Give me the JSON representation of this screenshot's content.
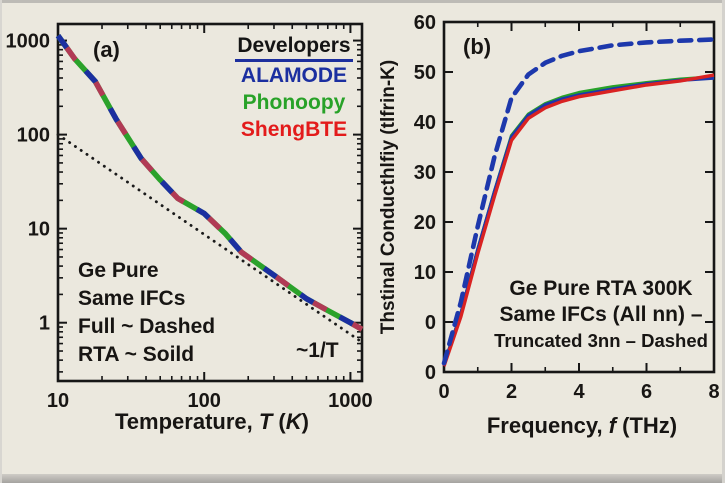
{
  "panel_a": {
    "tag": "(a)",
    "legend": {
      "title": "Developers",
      "underline_color": "#1d2f9e",
      "entries": [
        {
          "label": "ALAMODE",
          "color": "#1b2fa0"
        },
        {
          "label": "Phonoopy",
          "color": "#28a228"
        },
        {
          "label": "ShengBTE",
          "color": "#e31b1b"
        }
      ]
    },
    "note_lines": [
      "Ge Pure",
      "Same IFCs",
      "Full ~ Dashed",
      "RTA ~ Soild"
    ],
    "slope_label": "~1/T",
    "xlabel_parts": [
      {
        "t": "Temperature, "
      },
      {
        "t": "T",
        "i": true
      },
      {
        "t": " ("
      },
      {
        "t": "K",
        "i": true
      },
      {
        "t": ")"
      }
    ]
  },
  "panel_b": {
    "tag": "(b)",
    "note_lines": [
      "Ge Pure RTA 300K",
      "Same IFCs (All nn) –",
      "Truncated 3nn – Dashed"
    ],
    "ylabel": "Thstinal Conducthlfiy (tlfrin-K)",
    "xlabel_parts": [
      {
        "t": "Frequency, "
      },
      {
        "t": "f",
        "i": true
      },
      {
        "t": " (THz)"
      }
    ]
  },
  "chart_data": [
    {
      "id": "a",
      "type": "line",
      "panel": "(a)",
      "x_scale": "log",
      "y_scale": "log",
      "xlabel": "Temperature, T (K)",
      "ylabel": "",
      "xlim": [
        10,
        1200
      ],
      "ylim": [
        0.24,
        1500
      ],
      "x_ticks": [
        10,
        100,
        1000
      ],
      "y_ticks": [
        1,
        10,
        100,
        1000
      ],
      "grid": false,
      "annotations": [
        "Ge Pure",
        "Same IFCs",
        "Full ~ Dashed",
        "RTA ~ Soild",
        "~1/T"
      ],
      "series": [
        {
          "name": "ALAMODE / Phonoopy / ShengBTE (overlapping RTA solid + full dashed)",
          "style": "tricolor-dashed",
          "colors": [
            "#2ba22b",
            "#1b2fa0",
            "#b13a55"
          ],
          "width": 5.5,
          "x": [
            10,
            13,
            18,
            25,
            37,
            50,
            66,
            100,
            140,
            180,
            300,
            500,
            700,
            1000,
            1200
          ],
          "y": [
            1130,
            640,
            367,
            146,
            56,
            33,
            21,
            14.5,
            8.8,
            5.6,
            3.2,
            1.8,
            1.35,
            1.0,
            0.85
          ]
        },
        {
          "name": "~1/T reference",
          "style": "dotted",
          "colors": [
            "#1a1a1a"
          ],
          "width": 2.8,
          "x": [
            10,
            1200
          ],
          "y": [
            100,
            0.62
          ]
        }
      ]
    },
    {
      "id": "b",
      "type": "line",
      "panel": "(b)",
      "x_scale": "linear",
      "y_scale": "linear",
      "xlabel": "Frequency, f (THz)",
      "ylabel": "Thstinal Conducthlfiy (tlfrin-K)",
      "xlim": [
        0,
        8
      ],
      "ylim": [
        0,
        60
      ],
      "x_ticks": [
        0,
        2,
        4,
        6,
        8
      ],
      "x_minor_ticks": [
        1,
        3,
        5,
        7
      ],
      "y_tick_labels": [
        "60",
        "50",
        "40",
        "30",
        "20",
        "10",
        "0",
        "0"
      ],
      "y_ticks_layout": "8 evenly spaced rows as printed (duplicate 0 in source)",
      "grid": false,
      "series": [
        {
          "name": "Phonoopy (All nn, solid)",
          "style": "solid",
          "colors": [
            "#28a228"
          ],
          "width": 3.4,
          "x": [
            0,
            0.5,
            1,
            1.5,
            2,
            2.5,
            3,
            3.5,
            4,
            4.5,
            5,
            6,
            7,
            8
          ],
          "y": [
            1.2,
            10,
            21,
            31,
            40.5,
            44.2,
            46.0,
            47.1,
            47.9,
            48.4,
            48.9,
            49.6,
            50.2,
            50.6
          ]
        },
        {
          "name": "ALAMODE (All nn, solid)",
          "style": "solid",
          "colors": [
            "#1d38ac"
          ],
          "width": 3.4,
          "x": [
            0,
            0.5,
            1,
            1.5,
            2,
            2.5,
            3,
            3.5,
            4,
            4.5,
            5,
            6,
            7,
            8
          ],
          "y": [
            1.2,
            10,
            21,
            31,
            40.3,
            44.0,
            45.8,
            46.8,
            47.5,
            48.0,
            48.5,
            49.4,
            50.0,
            50.4
          ]
        },
        {
          "name": "ShengBTE (All nn, solid)",
          "style": "solid",
          "colors": [
            "#d92222"
          ],
          "width": 3.4,
          "x": [
            0,
            0.5,
            1,
            1.5,
            2,
            2.5,
            3,
            3.5,
            4,
            4.5,
            5,
            6,
            7,
            8
          ],
          "y": [
            1.0,
            9.5,
            20.3,
            30.2,
            39.7,
            43.5,
            45.3,
            46.4,
            47.2,
            47.7,
            48.2,
            49.2,
            49.9,
            50.9
          ]
        },
        {
          "name": "Truncated 3nn – Dashed",
          "style": "dashed",
          "colors": [
            "#1d38ac"
          ],
          "width": 4.6,
          "x": [
            0,
            0.5,
            1,
            1.5,
            2,
            2.5,
            3,
            3.5,
            4,
            5,
            6,
            7,
            8
          ],
          "y": [
            1.5,
            12,
            25,
            37,
            47,
            51,
            53,
            54.2,
            55,
            56,
            56.5,
            56.8,
            57
          ]
        }
      ]
    }
  ]
}
